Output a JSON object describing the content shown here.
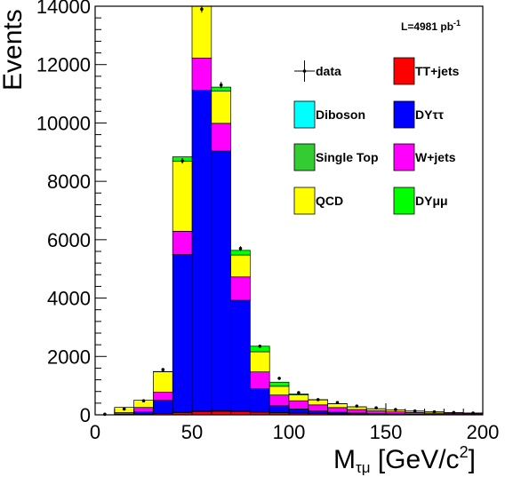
{
  "chart_data": {
    "type": "bar",
    "stacked": true,
    "xlabel": "M",
    "xlabel_sub": "τμ",
    "xlabel_unit": " [GeV/c",
    "xlabel_unit_sup": "2",
    "xlabel_unit_end": "]",
    "ylabel": "Events",
    "xlim": [
      0,
      200
    ],
    "ylim": [
      0,
      14000
    ],
    "x_ticks": [
      0,
      50,
      100,
      150,
      200
    ],
    "y_ticks": [
      0,
      2000,
      4000,
      6000,
      8000,
      10000,
      12000,
      14000
    ],
    "lumi_label": "L=4981 pb",
    "lumi_sup": "-1",
    "bin_edges": [
      0,
      10,
      20,
      30,
      40,
      50,
      60,
      70,
      80,
      90,
      100,
      110,
      120,
      130,
      140,
      150,
      160,
      170,
      180,
      190,
      200
    ],
    "series": [
      {
        "key": "ttjets",
        "name": "TT+jets",
        "color": "#ff0000",
        "values": [
          0,
          5,
          20,
          40,
          80,
          110,
          120,
          110,
          90,
          70,
          55,
          45,
          35,
          28,
          22,
          18,
          14,
          11,
          9,
          7
        ]
      },
      {
        "key": "diboson",
        "name": "Diboson",
        "color": "#00ffff",
        "values": [
          0,
          0,
          1,
          2,
          5,
          8,
          10,
          8,
          6,
          5,
          4,
          3,
          2,
          2,
          2,
          1,
          1,
          1,
          1,
          1
        ]
      },
      {
        "key": "singletop",
        "name": "Single Top",
        "color": "#33cc33",
        "values": [
          0,
          0,
          1,
          2,
          5,
          8,
          8,
          7,
          5,
          4,
          3,
          3,
          2,
          2,
          2,
          1,
          1,
          1,
          1,
          1
        ]
      },
      {
        "key": "dytautau",
        "name": "DYττ",
        "color": "#0000ff",
        "values": [
          0,
          20,
          80,
          450,
          5400,
          11000,
          8900,
          3800,
          800,
          230,
          140,
          80,
          50,
          30,
          20,
          12,
          8,
          5,
          3,
          2
        ]
      },
      {
        "key": "wjets",
        "name": "W+jets",
        "color": "#ff00ff",
        "values": [
          0,
          50,
          150,
          280,
          800,
          1100,
          950,
          800,
          570,
          370,
          280,
          210,
          160,
          120,
          90,
          70,
          55,
          42,
          33,
          26
        ]
      },
      {
        "key": "qcd",
        "name": "QCD",
        "color": "#ffff00",
        "values": [
          0,
          180,
          250,
          700,
          2400,
          1800,
          1100,
          750,
          690,
          300,
          200,
          170,
          130,
          90,
          70,
          60,
          50,
          40,
          30,
          25
        ]
      },
      {
        "key": "dymumu",
        "name": "DYμμ",
        "color": "#00ff00",
        "values": [
          0,
          0,
          0,
          10,
          150,
          150,
          140,
          160,
          190,
          140,
          30,
          10,
          5,
          3,
          2,
          1,
          1,
          1,
          1,
          1
        ]
      }
    ],
    "data": {
      "name": "data",
      "x": [
        5,
        15,
        25,
        35,
        45,
        55,
        65,
        75,
        85,
        95,
        105,
        115,
        125,
        135,
        145,
        155,
        165,
        175,
        185,
        195
      ],
      "y": [
        20,
        200,
        480,
        1550,
        8700,
        13900,
        11300,
        5700,
        2350,
        1250,
        760,
        520,
        420,
        300,
        240,
        180,
        130,
        100,
        80,
        60
      ]
    },
    "legend": {
      "position": "right",
      "entries": [
        {
          "key": "data",
          "label": "data"
        },
        {
          "key": "ttjets",
          "label": "TT+jets"
        },
        {
          "key": "diboson",
          "label": "Diboson"
        },
        {
          "key": "dytautau",
          "label": "DYττ"
        },
        {
          "key": "singletop",
          "label": "Single Top"
        },
        {
          "key": "wjets",
          "label": "W+jets"
        },
        {
          "key": "qcd",
          "label": "QCD"
        },
        {
          "key": "dymumu",
          "label": "DYμμ"
        }
      ]
    }
  }
}
